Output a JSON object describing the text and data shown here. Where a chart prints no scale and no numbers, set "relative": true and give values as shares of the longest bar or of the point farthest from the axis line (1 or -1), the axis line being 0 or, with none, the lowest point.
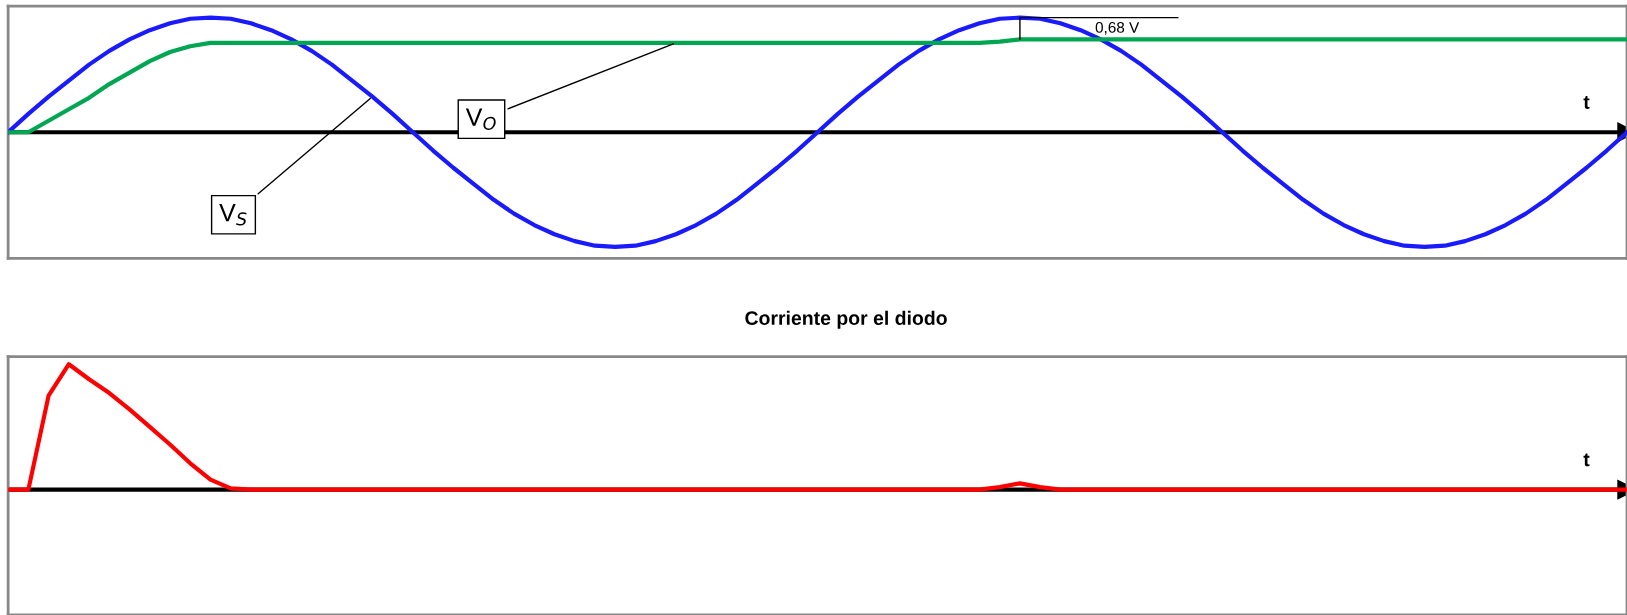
{
  "chart_data": [
    {
      "type": "line",
      "relative": true,
      "xlabel": "t",
      "categories": [
        null,
        null,
        null,
        null,
        null,
        null,
        null,
        null,
        null,
        null,
        null,
        null,
        null,
        null,
        null,
        null,
        null,
        null,
        null,
        null,
        null,
        null,
        null,
        null,
        null,
        null,
        null,
        null,
        null,
        null,
        null,
        null,
        null,
        null,
        null,
        null,
        null,
        null,
        null,
        null,
        null,
        null,
        null,
        null,
        null,
        null,
        null,
        null,
        null,
        null,
        null,
        null,
        null,
        null,
        null,
        null,
        null,
        null,
        null,
        null,
        null,
        null,
        null,
        null,
        null,
        null,
        null,
        null,
        null,
        null,
        null,
        null,
        null,
        null,
        null,
        null,
        null,
        null,
        null,
        null,
        null
      ],
      "series": [
        {
          "color": "#1a1aff",
          "values": [
            0,
            0.16,
            0.31,
            0.45,
            0.59,
            0.71,
            0.81,
            0.89,
            0.95,
            0.99,
            1,
            0.99,
            0.95,
            0.89,
            0.81,
            0.71,
            0.59,
            0.45,
            0.31,
            0.16,
            0,
            -0.16,
            -0.31,
            -0.45,
            -0.59,
            -0.71,
            -0.81,
            -0.89,
            -0.95,
            -0.99,
            -1,
            -0.99,
            -0.95,
            -0.89,
            -0.81,
            -0.71,
            -0.59,
            -0.45,
            -0.31,
            -0.16,
            0,
            0.16,
            0.31,
            0.45,
            0.59,
            0.71,
            0.81,
            0.89,
            0.95,
            0.99,
            1,
            0.99,
            0.95,
            0.89,
            0.81,
            0.71,
            0.59,
            0.45,
            0.31,
            0.16,
            0,
            -0.16,
            -0.31,
            -0.45,
            -0.59,
            -0.71,
            -0.81,
            -0.89,
            -0.95,
            -0.99,
            -1,
            -0.99,
            -0.95,
            -0.89,
            -0.81,
            -0.71,
            -0.59,
            -0.45,
            -0.31,
            -0.16,
            0
          ]
        },
        {
          "color": "#00a651",
          "values": [
            0,
            0,
            0.1,
            0.2,
            0.3,
            0.42,
            0.52,
            0.62,
            0.7,
            0.75,
            0.78,
            0.78,
            0.78,
            0.78,
            0.78,
            0.78,
            0.78,
            0.78,
            0.78,
            0.78,
            0.78,
            0.78,
            0.78,
            0.78,
            0.78,
            0.78,
            0.78,
            0.78,
            0.78,
            0.78,
            0.78,
            0.78,
            0.78,
            0.78,
            0.78,
            0.78,
            0.78,
            0.78,
            0.78,
            0.78,
            0.78,
            0.78,
            0.78,
            0.78,
            0.78,
            0.78,
            0.78,
            0.78,
            0.78,
            0.79,
            0.81,
            0.81,
            0.81,
            0.81,
            0.81,
            0.81,
            0.81,
            0.81,
            0.81,
            0.81,
            0.81,
            0.81,
            0.81,
            0.81,
            0.81,
            0.81,
            0.81,
            0.81,
            0.81,
            0.81,
            0.81,
            0.81,
            0.81,
            0.81,
            0.81,
            0.81,
            0.81,
            0.81,
            0.81,
            0.81,
            0.81
          ]
        }
      ],
      "annotations": [
        "V$_{O}$",
        "V$_{S}$",
        "0,68 V"
      ]
    },
    {
      "type": "line",
      "relative": true,
      "title": "Corriente por el diodo",
      "xlabel": "t",
      "categories": [
        null,
        null,
        null,
        null,
        null,
        null,
        null,
        null,
        null,
        null,
        null,
        null,
        null,
        null,
        null,
        null,
        null,
        null,
        null,
        null,
        null,
        null,
        null,
        null,
        null,
        null,
        null,
        null,
        null,
        null,
        null,
        null,
        null,
        null,
        null,
        null,
        null,
        null,
        null,
        null,
        null,
        null,
        null,
        null,
        null,
        null,
        null,
        null,
        null,
        null,
        null,
        null,
        null,
        null,
        null,
        null,
        null,
        null,
        null,
        null,
        null,
        null,
        null,
        null,
        null,
        null,
        null,
        null,
        null,
        null,
        null,
        null,
        null,
        null,
        null,
        null,
        null,
        null,
        null,
        null,
        null
      ],
      "series": [
        {
          "color": "#ff0000",
          "values": [
            0,
            0,
            0.75,
            1,
            0.88,
            0.77,
            0.64,
            0.5,
            0.36,
            0.21,
            0.08,
            0.01,
            0,
            0,
            0,
            0,
            0,
            0,
            0,
            0,
            0,
            0,
            0,
            0,
            0,
            0,
            0,
            0,
            0,
            0,
            0,
            0,
            0,
            0,
            0,
            0,
            0,
            0,
            0,
            0,
            0,
            0,
            0,
            0,
            0,
            0,
            0,
            0,
            0,
            0.02,
            0.05,
            0.02,
            0,
            0,
            0,
            0,
            0,
            0,
            0,
            0,
            0,
            0,
            0,
            0,
            0,
            0,
            0,
            0,
            0,
            0,
            0,
            0,
            0,
            0,
            0,
            0,
            0,
            0,
            0,
            0,
            0
          ]
        }
      ]
    }
  ]
}
